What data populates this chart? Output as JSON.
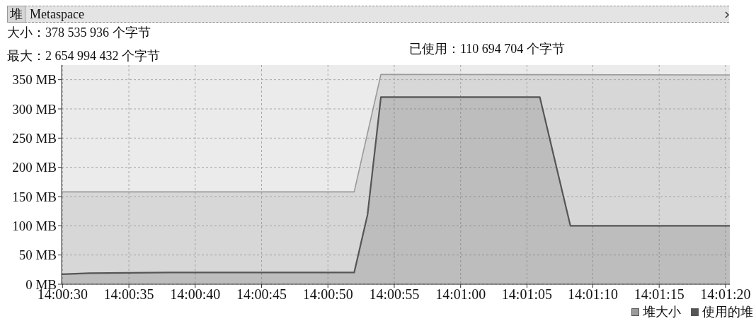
{
  "chart_data": {
    "type": "area",
    "annotations": [
      "堆",
      "Metaspace",
      "大小：378 535 936 个字节",
      "最大：2 654 994 432 个字节",
      "已使用：110 694 704 个字节"
    ],
    "series": [
      {
        "name": "堆大小",
        "color": "#9a9a9a",
        "x": [
          14.00831,
          14.01444,
          14.015,
          14.02231
        ],
        "values": [
          158,
          158,
          359,
          358
        ]
      },
      {
        "name": "使用的堆",
        "color": "#555555",
        "x": [
          14.00831,
          14.00889,
          14.01056,
          14.01444,
          14.01472,
          14.015,
          14.01833,
          14.01897,
          14.02231
        ],
        "values": [
          17,
          19,
          20,
          20,
          119,
          320,
          320,
          100,
          100
        ]
      }
    ],
    "xlim": [
      14.00831,
      14.02231
    ],
    "xticks": [
      {
        "value": 14.00833,
        "label": "14:00:30"
      },
      {
        "value": 14.00972,
        "label": "14:00:35"
      },
      {
        "value": 14.01111,
        "label": "14:00:40"
      },
      {
        "value": 14.0125,
        "label": "14:00:45"
      },
      {
        "value": 14.01389,
        "label": "14:00:50"
      },
      {
        "value": 14.01528,
        "label": "14:00:55"
      },
      {
        "value": 14.01667,
        "label": "14:01:00"
      },
      {
        "value": 14.01806,
        "label": "14:01:05"
      },
      {
        "value": 14.01944,
        "label": "14:01:10"
      },
      {
        "value": 14.02083,
        "label": "14:01:15"
      },
      {
        "value": 14.02222,
        "label": "14:01:20"
      }
    ],
    "ylim": [
      0,
      375
    ],
    "yticks": [
      {
        "value": 0,
        "label": "0 MB"
      },
      {
        "value": 50,
        "label": "50 MB"
      },
      {
        "value": 100,
        "label": "100 MB"
      },
      {
        "value": 150,
        "label": "150 MB"
      },
      {
        "value": 200,
        "label": "200 MB"
      },
      {
        "value": 250,
        "label": "250 MB"
      },
      {
        "value": 300,
        "label": "300 MB"
      },
      {
        "value": 350,
        "label": "350 MB"
      }
    ],
    "grid": true,
    "legend": "bottom right"
  }
}
